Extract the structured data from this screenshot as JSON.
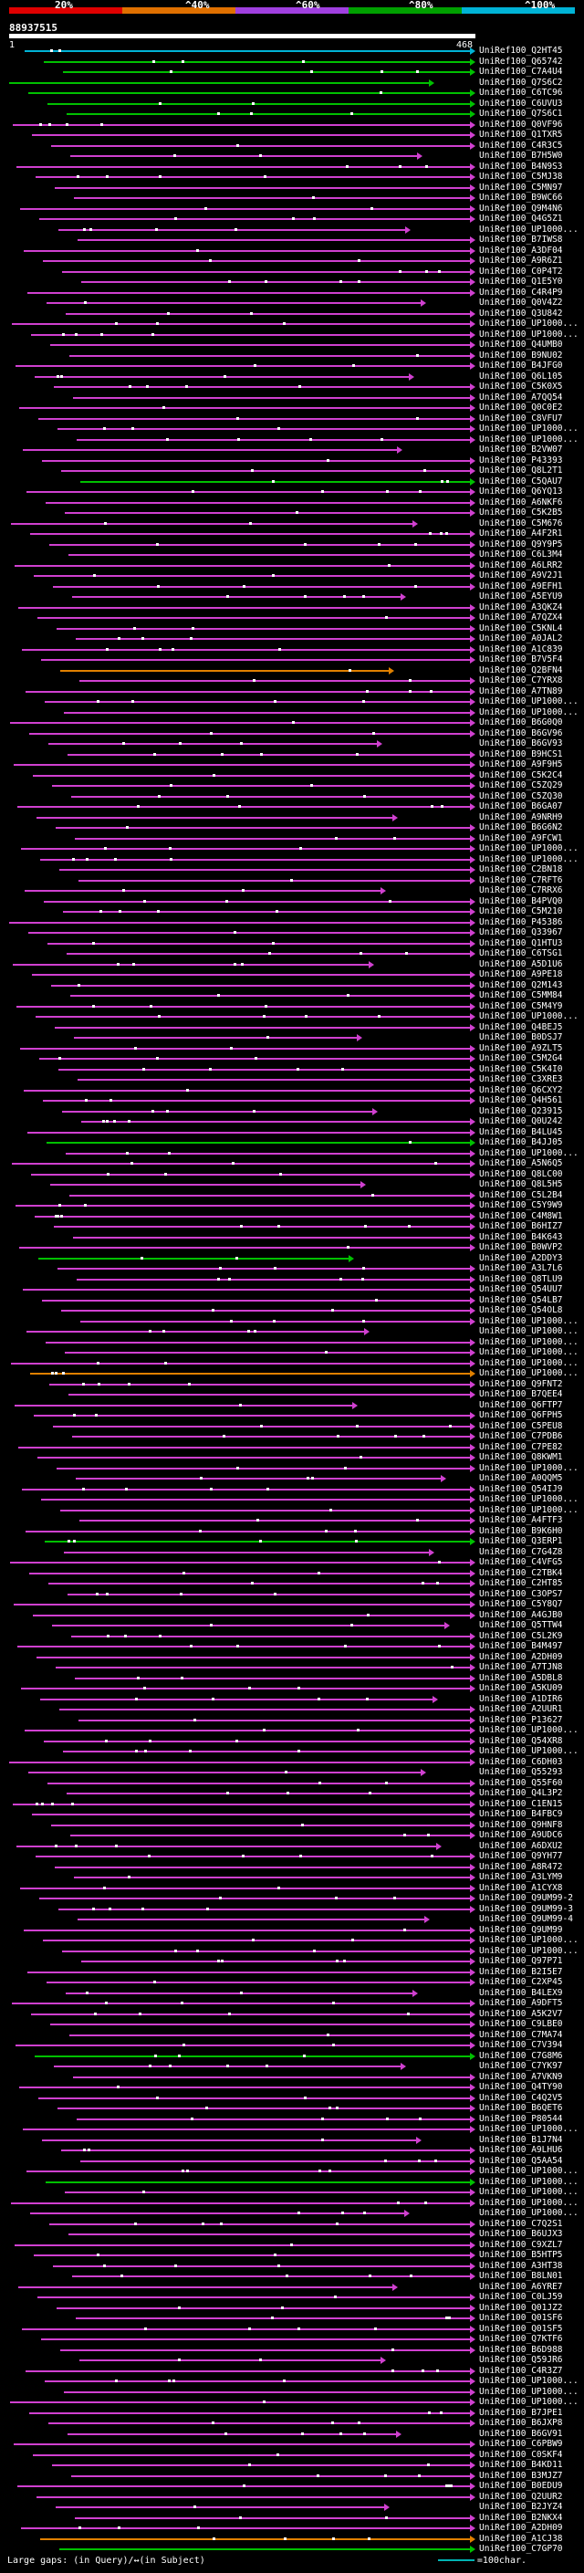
{
  "scale": {
    "labels": [
      "20%",
      "^40%",
      "^60%",
      "^80%",
      "^100%"
    ],
    "colors": [
      "#e00000",
      "#e07000",
      "#a040e0",
      "#00a000",
      "#00b3d6"
    ]
  },
  "query": {
    "id": "88937515",
    "start_tick": "1",
    "end_tick": "468"
  },
  "hits": [
    "UniRef100_Q2HT45",
    "UniRef100_Q65742",
    "UniRef100_C7A4U4",
    "UniRef100_Q7S6C2",
    "UniRef100_C6TC96",
    "UniRef100_C6UVU3",
    "UniRef100_Q7S6C1",
    "UniRef100_Q0VF96",
    "UniRef100_Q1TXR5",
    "UniRef100_C4R3C5",
    "UniRef100_B7H5W0",
    "UniRef100_B4N9S3",
    "UniRef100_C5MJ38",
    "UniRef100_C5MN97",
    "UniRef100_B9WC66",
    "UniRef100_Q9M4N6",
    "UniRef100_Q4G5Z1",
    "UniRef100_UP1000...",
    "UniRef100_B7IWS8",
    "UniRef100_A3DF04",
    "UniRef100_A9R6Z1",
    "UniRef100_C0P4T2",
    "UniRef100_Q1E5Y0",
    "UniRef100_C4R4P9",
    "UniRef100_Q0V4Z2",
    "UniRef100_Q3U842",
    "UniRef100_UP1000...",
    "UniRef100_UP1000...",
    "UniRef100_Q4UMB0",
    "UniRef100_B9NU02",
    "UniRef100_B4JFG0",
    "UniRef100_Q6L105",
    "UniRef100_C5K0X5",
    "UniRef100_A7QQ54",
    "UniRef100_Q0C0E2",
    "UniRef100_C8VFU7",
    "UniRef100_UP1000...",
    "UniRef100_UP1000...",
    "UniRef100_B2VW07",
    "UniRef100_P43393",
    "UniRef100_Q8L2T1",
    "UniRef100_C5QAU7",
    "UniRef100_Q6YQ13",
    "UniRef100_A6NKF6",
    "UniRef100_C5K2B5",
    "UniRef100_C5M676",
    "UniRef100_A4F2R1",
    "UniRef100_Q9Y9P5",
    "UniRef100_C6L3M4",
    "UniRef100_A6LRR2",
    "UniRef100_A9V2J1",
    "UniRef100_A9EFH1",
    "UniRef100_A5EYU9",
    "UniRef100_A3QKZ4",
    "UniRef100_A7QZX4",
    "UniRef100_C5KNL4",
    "UniRef100_A0JAL2",
    "UniRef100_A1C839",
    "UniRef100_B7V5F4",
    "UniRef100_Q2BFN4",
    "UniRef100_C7YRX8",
    "UniRef100_A7TN89",
    "UniRef100_UP1000...",
    "UniRef100_UP1000...",
    "UniRef100_B6G0Q0",
    "UniRef100_B6GV96",
    "UniRef100_B6GV93",
    "UniRef100_B9HCS1",
    "UniRef100_A9F9H5",
    "UniRef100_C5K2C4",
    "UniRef100_C5ZQ29",
    "UniRef100_C5ZQ30",
    "UniRef100_B6GA07",
    "UniRef100_A9NRH9",
    "UniRef100_B6G6N2",
    "UniRef100_A9FCW1",
    "UniRef100_UP1000...",
    "UniRef100_UP1000...",
    "UniRef100_C2BN18",
    "UniRef100_C7RFT6",
    "UniRef100_C7RRX6",
    "UniRef100_B4PVQ0",
    "UniRef100_C5M210",
    "UniRef100_P45386",
    "UniRef100_Q33967",
    "UniRef100_Q1HTU3",
    "UniRef100_C6TSG1",
    "UniRef100_A5D1U6",
    "UniRef100_A9PE18",
    "UniRef100_Q2M143",
    "UniRef100_C5MM84",
    "UniRef100_C5M4Y9",
    "UniRef100_UP1000...",
    "UniRef100_Q4BEJ5",
    "UniRef100_B0DSJ7",
    "UniRef100_A9ZLT5",
    "UniRef100_C5M2G4",
    "UniRef100_C5K4I0",
    "UniRef100_C3XRE3",
    "UniRef100_Q6CXY2",
    "UniRef100_Q4H561",
    "UniRef100_Q23915",
    "UniRef100_Q0U242",
    "UniRef100_B4LU45",
    "UniRef100_B4JJ05",
    "UniRef100_UP1000...",
    "UniRef100_A5N6Q5",
    "UniRef100_Q8LC00",
    "UniRef100_Q8L5H5",
    "UniRef100_C5L2B4",
    "UniRef100_C5Y9W9",
    "UniRef100_C4M8W1",
    "UniRef100_B6HIZ7",
    "UniRef100_B4K643",
    "UniRef100_B0WVP2",
    "UniRef100_A2DDY3",
    "UniRef100_A3L7L6",
    "UniRef100_Q8TLU9",
    "UniRef100_Q54UU7",
    "UniRef100_Q54LB7",
    "UniRef100_Q54OL8",
    "UniRef100_UP1000...",
    "UniRef100_UP1000...",
    "UniRef100_UP1000...",
    "UniRef100_UP1000...",
    "UniRef100_UP1000...",
    "UniRef100_UP1000...",
    "UniRef100_Q9FNT2",
    "UniRef100_B7QEE4",
    "UniRef100_Q6FTP7",
    "UniRef100_Q6FPH5",
    "UniRef100_C5PEU8",
    "UniRef100_C7PDB6",
    "UniRef100_C7PE82",
    "UniRef100_Q8KWM1",
    "UniRef100_UP1000...",
    "UniRef100_A0QQM5",
    "UniRef100_Q54IJ9",
    "UniRef100_UP1000...",
    "UniRef100_UP1000...",
    "UniRef100_A4FTF3",
    "UniRef100_B9K6H0",
    "UniRef100_Q3ERP1",
    "UniRef100_C7G4Z8",
    "UniRef100_C4VFG5",
    "UniRef100_C2TBK4",
    "UniRef100_C2HT85",
    "UniRef100_C3OPS7",
    "UniRef100_C5Y8Q7",
    "UniRef100_A4GJB0",
    "UniRef100_Q5TTW4",
    "UniRef100_C5L2K9",
    "UniRef100_B4M497",
    "UniRef100_A2DH09",
    "UniRef100_A7TJN8",
    "UniRef100_A5DBL8",
    "UniRef100_A5KU09",
    "UniRef100_A1DIR6",
    "UniRef100_A2UUR1",
    "UniRef100_P13627",
    "UniRef100_UP1000...",
    "UniRef100_Q54XR8",
    "UniRef100_UP1000...",
    "UniRef100_C6DH03",
    "UniRef100_Q55293",
    "UniRef100_Q55F60",
    "UniRef100_Q4L3P2",
    "UniRef100_C1EN15",
    "UniRef100_B4FBC9",
    "UniRef100_Q9HNF8",
    "UniRef100_A9UDC6",
    "UniRef100_A6DXU2",
    "UniRef100_Q9YH77",
    "UniRef100_A8R472",
    "UniRef100_A3LYM9",
    "UniRef100_A1CYX8",
    "UniRef100_Q9UM99-2",
    "UniRef100_Q9UM99-3",
    "UniRef100_Q9UM99-4",
    "UniRef100_Q9UM99",
    "UniRef100_UP1000...",
    "UniRef100_UP1000...",
    "UniRef100_Q97P71",
    "UniRef100_B2I5E7",
    "UniRef100_C2XP45",
    "UniRef100_B4LEX9",
    "UniRef100_A9DFT5",
    "UniRef100_A5K2V7",
    "UniRef100_C9LBE0",
    "UniRef100_C7MA74",
    "UniRef100_C7V394",
    "UniRef100_C7G8M6",
    "UniRef100_C7YK97",
    "UniRef100_A7VKN9",
    "UniRef100_Q4TY90",
    "UniRef100_C4Q2V5",
    "UniRef100_B6QET6",
    "UniRef100_P80544",
    "UniRef100_UP1000...",
    "UniRef100_B1J7N4",
    "UniRef100_A9LHU6",
    "UniRef100_Q5AA54",
    "UniRef100_UP1000...",
    "UniRef100_UP1000...",
    "UniRef100_UP1000...",
    "UniRef100_UP1000...",
    "UniRef100_UP1000...",
    "UniRef100_C7Q2S1",
    "UniRef100_B6UJX3",
    "UniRef100_C9XZL7",
    "UniRef100_B5HTP5",
    "UniRef100_A3HT38",
    "UniRef100_B8LN01",
    "UniRef100_A6YRE7",
    "UniRef100_C0LJ59",
    "UniRef100_Q01JZ2",
    "UniRef100_Q01SF6",
    "UniRef100_Q01SF5",
    "UniRef100_Q7KTF6",
    "UniRef100_B6D988",
    "UniRef100_Q59JR6",
    "UniRef100_C4R3Z7",
    "UniRef100_UP1000...",
    "UniRef100_UP1000...",
    "UniRef100_UP1000...",
    "UniRef100_B7JPE1",
    "UniRef100_B6JXP8",
    "UniRef100_B6GV91",
    "UniRef100_C6PBW9",
    "UniRef100_C0SKF4",
    "UniRef100_B4KD11",
    "UniRef100_B3MJZ7",
    "UniRef100_B0EDU9",
    "UniRef100_Q2UUR2",
    "UniRef100_B2JYZ4",
    "UniRef100_B2NKX4",
    "UniRef100_A2DH09",
    "UniRef100_A1CJ38",
    "UniRef100_C7GP70"
  ],
  "footer": {
    "large_gaps_label": "Large gaps:",
    "gap_legend": "(in Query)/↔(in Subject)",
    "scale_legend": "=100char."
  }
}
